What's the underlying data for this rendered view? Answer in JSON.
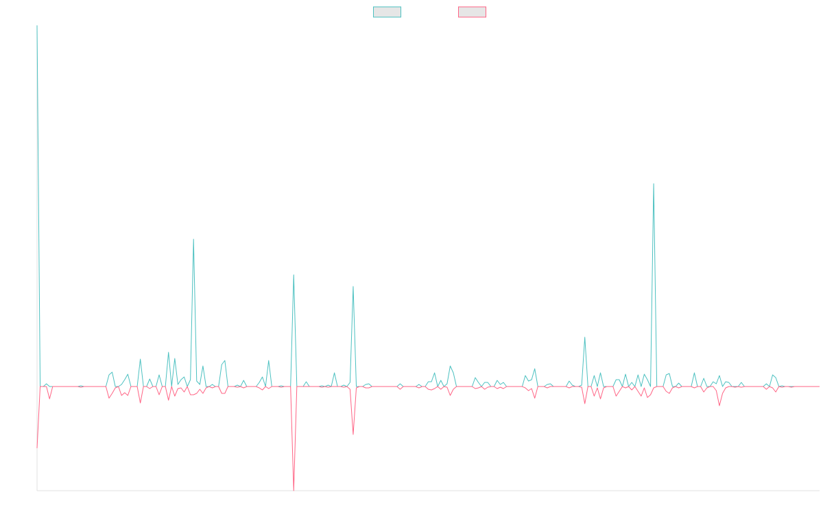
{
  "chart_data": {
    "type": "line",
    "ylim": [
      -152,
      527
    ],
    "legend": "top",
    "series": [
      {
        "color": "#4bc0c0",
        "values": [
          527,
          0,
          0,
          4,
          0,
          0,
          0,
          0,
          0,
          0,
          0,
          0,
          0,
          0,
          1,
          0,
          0,
          0,
          0,
          0,
          0,
          0,
          0,
          17,
          21,
          0,
          0,
          3,
          10,
          18,
          0,
          0,
          0,
          40,
          0,
          0,
          11,
          0,
          0,
          17,
          0,
          0,
          50,
          0,
          41,
          3,
          10,
          14,
          0,
          10,
          215,
          8,
          3,
          30,
          0,
          0,
          3,
          0,
          0,
          32,
          38,
          0,
          0,
          0,
          2,
          0,
          9,
          0,
          0,
          0,
          0,
          6,
          14,
          0,
          38,
          0,
          0,
          0,
          1,
          0,
          0,
          0,
          163,
          0,
          0,
          0,
          7,
          0,
          0,
          0,
          0,
          1,
          0,
          2,
          0,
          20,
          0,
          0,
          2,
          0,
          6,
          146,
          0,
          0,
          0,
          3,
          4,
          0,
          0,
          0,
          0,
          0,
          0,
          0,
          0,
          0,
          4,
          0,
          0,
          0,
          0,
          0,
          3,
          0,
          0,
          7,
          7,
          20,
          0,
          9,
          0,
          4,
          30,
          20,
          0,
          0,
          0,
          0,
          0,
          0,
          13,
          6,
          0,
          6,
          6,
          0,
          0,
          9,
          3,
          6,
          0,
          0,
          0,
          0,
          0,
          0,
          16,
          8,
          10,
          26,
          0,
          0,
          0,
          3,
          4,
          0,
          0,
          0,
          0,
          0,
          8,
          2,
          0,
          0,
          2,
          72,
          0,
          0,
          16,
          0,
          20,
          0,
          0,
          0,
          0,
          10,
          10,
          0,
          18,
          0,
          6,
          0,
          17,
          0,
          18,
          10,
          0,
          296,
          0,
          0,
          0,
          17,
          19,
          0,
          0,
          5,
          0,
          0,
          0,
          0,
          20,
          0,
          0,
          12,
          0,
          0,
          7,
          4,
          16,
          0,
          7,
          6,
          0,
          0,
          0,
          6,
          0,
          0,
          0,
          0,
          0,
          0,
          0,
          4,
          0,
          17,
          13,
          0,
          1,
          0,
          0,
          0,
          0,
          0,
          0,
          0,
          0,
          0,
          0,
          0,
          0
        ]
      },
      {
        "color": "#ff6384",
        "values": [
          -90,
          0,
          0,
          0,
          -18,
          0,
          0,
          0,
          0,
          0,
          0,
          0,
          0,
          0,
          -1,
          0,
          0,
          0,
          0,
          0,
          0,
          0,
          0,
          -17,
          -10,
          -2,
          0,
          -13,
          -9,
          -13,
          0,
          0,
          0,
          -24,
          0,
          0,
          -3,
          0,
          0,
          -12,
          0,
          0,
          -20,
          0,
          -14,
          -3,
          -2,
          -8,
          0,
          -12,
          -12,
          -10,
          -4,
          -10,
          -2,
          0,
          -2,
          0,
          0,
          -10,
          -10,
          0,
          0,
          0,
          -1,
          0,
          -2,
          0,
          0,
          0,
          0,
          -2,
          -5,
          0,
          -3,
          0,
          0,
          0,
          -1,
          0,
          0,
          0,
          -152,
          0,
          0,
          0,
          0,
          0,
          0,
          0,
          0,
          -1,
          0,
          -1,
          0,
          0,
          0,
          0,
          -1,
          0,
          -4,
          -70,
          -2,
          0,
          0,
          -2,
          -2,
          0,
          0,
          0,
          0,
          0,
          0,
          0,
          0,
          0,
          -4,
          0,
          0,
          0,
          0,
          0,
          -2,
          0,
          0,
          -4,
          -5,
          -3,
          0,
          -4,
          0,
          -1,
          -13,
          -4,
          0,
          0,
          0,
          0,
          0,
          0,
          -3,
          -2,
          0,
          -4,
          -1,
          0,
          0,
          -3,
          -1,
          -3,
          0,
          0,
          0,
          0,
          0,
          0,
          -2,
          -6,
          -3,
          -17,
          0,
          0,
          0,
          -2,
          0,
          0,
          0,
          0,
          0,
          0,
          -2,
          0,
          0,
          0,
          -1,
          -25,
          0,
          0,
          -14,
          -2,
          -18,
          -2,
          0,
          0,
          0,
          -14,
          -7,
          0,
          -2,
          0,
          -5,
          0,
          -7,
          -14,
          -2,
          -16,
          -12,
          -2,
          0,
          0,
          0,
          -7,
          -10,
          -2,
          0,
          -2,
          0,
          0,
          0,
          0,
          -2,
          0,
          0,
          -8,
          -2,
          0,
          0,
          -6,
          -28,
          -10,
          -2,
          0,
          0,
          -1,
          0,
          -1,
          0,
          0,
          0,
          0,
          0,
          0,
          0,
          -4,
          0,
          -2,
          -8,
          0,
          -1,
          0,
          0,
          -1,
          0,
          0,
          0,
          0,
          0,
          0,
          0,
          0,
          0
        ]
      }
    ]
  }
}
